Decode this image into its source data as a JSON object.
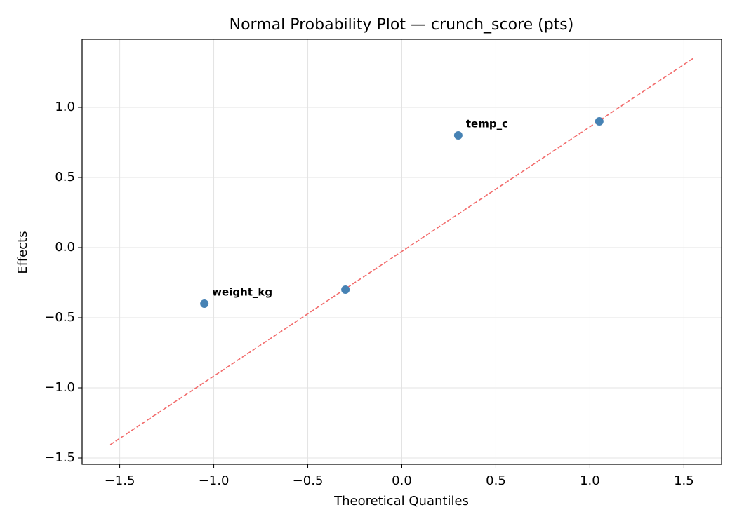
{
  "chart_data": {
    "type": "scatter",
    "title": "Normal Probability Plot — crunch_score (pts)",
    "x_label": "Theoretical Quantiles",
    "y_label": "Effects",
    "x": [
      -1.05,
      -0.3,
      0.3,
      1.05
    ],
    "values": [
      -0.4,
      -0.3,
      0.8,
      0.9
    ],
    "point_labels": [
      "weight_kg",
      null,
      "temp_c",
      null
    ],
    "color": "#4682b4",
    "label_color": "#ff0000",
    "fit_line": {
      "x": [
        -1.55,
        1.55
      ],
      "y": [
        -1.405,
        1.35
      ],
      "color": "#f26b6b",
      "dashed": true
    },
    "xlim": [
      -1.7,
      1.7
    ],
    "ylim": [
      -1.545,
      1.485
    ],
    "xticks": [
      {
        "value": -1.5,
        "label": "−1.5"
      },
      {
        "value": -1,
        "label": "−1.0"
      },
      {
        "value": -0.5,
        "label": "−0.5"
      },
      {
        "value": 0,
        "label": "0.0"
      },
      0.5,
      {
        "value": 1,
        "label": "1.0"
      },
      1.5
    ],
    "yticks": [
      {
        "value": -1.5,
        "label": "−1.5"
      },
      {
        "value": -1,
        "label": "−1.0"
      },
      {
        "value": -0.5,
        "label": "−0.5"
      },
      {
        "value": 0,
        "label": "0.0"
      },
      0.5,
      {
        "value": 1,
        "label": "1.0"
      }
    ],
    "grid": true
  }
}
